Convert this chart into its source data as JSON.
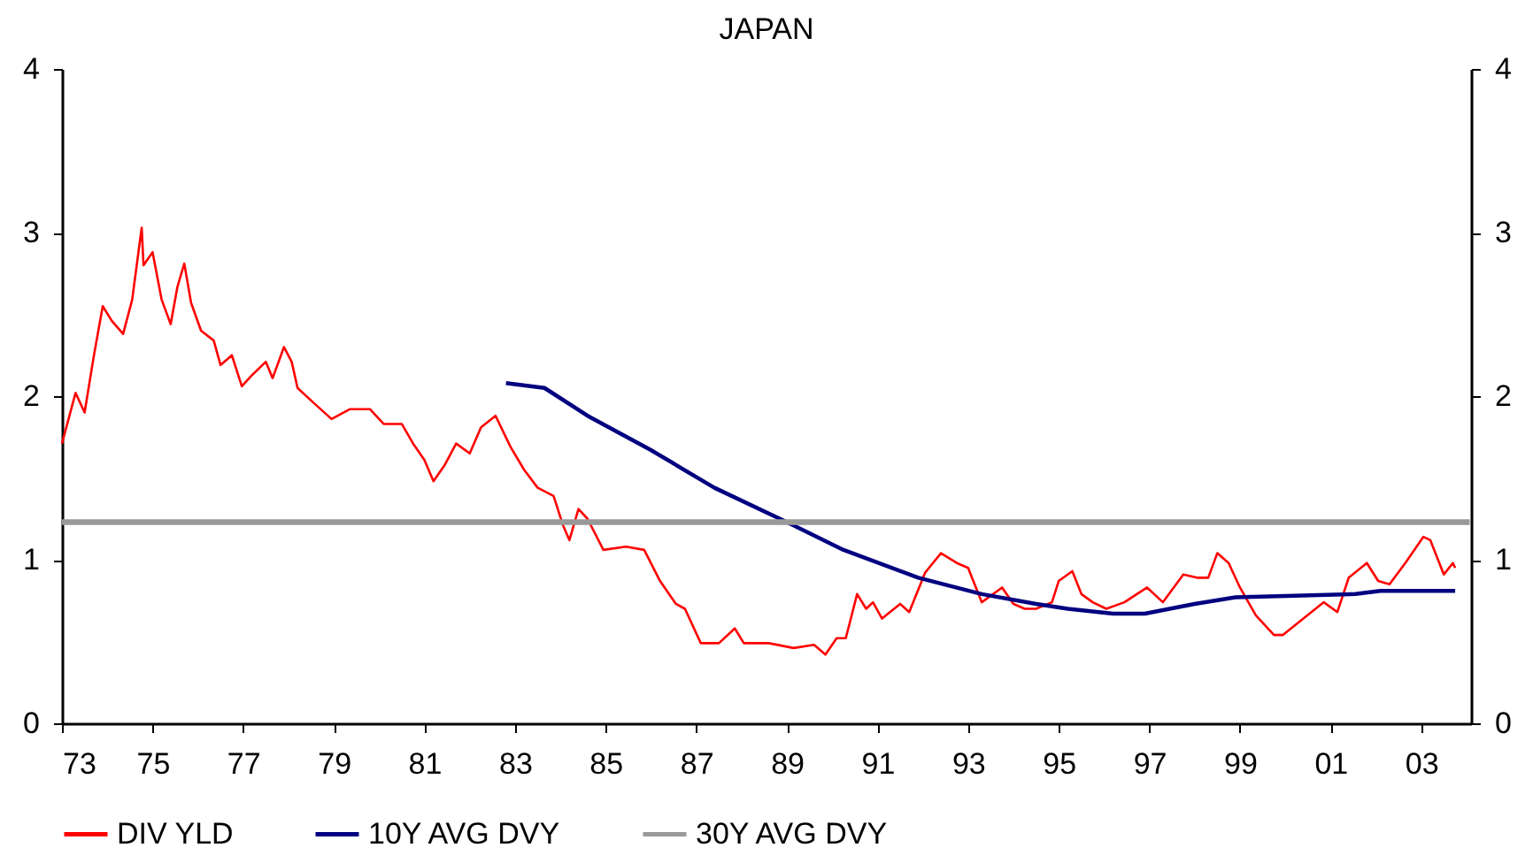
{
  "chart_data": {
    "type": "line",
    "title": "JAPAN",
    "xlim": [
      1973,
      2004.1
    ],
    "xticks": [
      {
        "value": 1973,
        "label": "73"
      },
      {
        "value": 1975,
        "label": "75"
      },
      {
        "value": 1977,
        "label": "77"
      },
      {
        "value": 1979,
        "label": "79"
      },
      {
        "value": 1981,
        "label": "81"
      },
      {
        "value": 1983,
        "label": "83"
      },
      {
        "value": 1985,
        "label": "85"
      },
      {
        "value": 1987,
        "label": "87"
      },
      {
        "value": 1989,
        "label": "89"
      },
      {
        "value": 1991,
        "label": "91"
      },
      {
        "value": 1993,
        "label": "93"
      },
      {
        "value": 1995,
        "label": "95"
      },
      {
        "value": 1997,
        "label": "97"
      },
      {
        "value": 1999,
        "label": "99"
      },
      {
        "value": 2001,
        "label": "01"
      },
      {
        "value": 2003,
        "label": "03"
      }
    ],
    "ylim": [
      0,
      4
    ],
    "yticks": [
      0,
      1,
      2,
      3,
      4
    ],
    "y2lim": [
      0,
      4
    ],
    "y2ticks": [
      0,
      1,
      2,
      3,
      4
    ],
    "grid": false,
    "legend": "bottom",
    "marker": "none",
    "line_style": "solid",
    "series": [
      {
        "name": "DIV YLD",
        "color": "#ff0000",
        "x": [
          1973.0,
          1973.3,
          1973.5,
          1973.7,
          1973.9,
          1974.1,
          1974.35,
          1974.55,
          1974.76,
          1974.8,
          1975.0,
          1975.2,
          1975.4,
          1975.55,
          1975.7,
          1975.85,
          1976.07,
          1976.35,
          1976.5,
          1976.75,
          1976.97,
          1977.2,
          1977.5,
          1977.65,
          1977.9,
          1978.07,
          1978.2,
          1978.55,
          1978.95,
          1979.35,
          1979.8,
          1980.1,
          1980.5,
          1980.75,
          1981.0,
          1981.2,
          1981.45,
          1981.7,
          1982.0,
          1982.25,
          1982.57,
          1982.9,
          1983.2,
          1983.5,
          1983.85,
          1984.06,
          1984.2,
          1984.4,
          1984.6,
          1984.95,
          1985.45,
          1985.85,
          1986.2,
          1986.55,
          1986.75,
          1987.1,
          1987.5,
          1987.85,
          1988.05,
          1988.6,
          1989.15,
          1989.6,
          1989.85,
          1990.1,
          1990.3,
          1990.55,
          1990.75,
          1990.9,
          1991.1,
          1991.5,
          1991.7,
          1992.05,
          1992.4,
          1992.75,
          1993.0,
          1993.3,
          1993.75,
          1994.0,
          1994.25,
          1994.5,
          1994.85,
          1995.0,
          1995.3,
          1995.5,
          1995.75,
          1996.05,
          1996.45,
          1996.95,
          1997.3,
          1997.75,
          1998.05,
          1998.3,
          1998.5,
          1998.75,
          1999.0,
          1999.35,
          1999.75,
          1999.95,
          2000.4,
          2000.85,
          2001.15,
          2001.4,
          2001.8,
          2002.05,
          2002.3,
          2002.65,
          2003.05,
          2003.2,
          2003.5,
          2003.7,
          2003.75
        ],
        "values": [
          1.71,
          2.02,
          1.9,
          2.24,
          2.55,
          2.46,
          2.38,
          2.59,
          3.03,
          2.8,
          2.88,
          2.59,
          2.44,
          2.67,
          2.81,
          2.57,
          2.4,
          2.34,
          2.19,
          2.25,
          2.06,
          2.13,
          2.21,
          2.11,
          2.3,
          2.21,
          2.05,
          1.96,
          1.86,
          1.92,
          1.92,
          1.83,
          1.83,
          1.71,
          1.61,
          1.48,
          1.58,
          1.71,
          1.65,
          1.81,
          1.88,
          1.69,
          1.55,
          1.44,
          1.39,
          1.21,
          1.12,
          1.31,
          1.25,
          1.06,
          1.08,
          1.06,
          0.87,
          0.73,
          0.7,
          0.49,
          0.49,
          0.58,
          0.49,
          0.49,
          0.46,
          0.48,
          0.42,
          0.52,
          0.52,
          0.79,
          0.7,
          0.74,
          0.64,
          0.73,
          0.68,
          0.92,
          1.04,
          0.98,
          0.95,
          0.74,
          0.83,
          0.73,
          0.7,
          0.7,
          0.74,
          0.87,
          0.93,
          0.79,
          0.74,
          0.7,
          0.74,
          0.83,
          0.74,
          0.91,
          0.89,
          0.89,
          1.04,
          0.98,
          0.83,
          0.66,
          0.54,
          0.54,
          0.64,
          0.74,
          0.68,
          0.89,
          0.98,
          0.87,
          0.85,
          0.98,
          1.14,
          1.12,
          0.91,
          0.98,
          0.95
        ]
      },
      {
        "name": "10Y AVG DVY",
        "color": "#000080",
        "x": [
          1982.8,
          1983.65,
          1984.6,
          1986.0,
          1987.4,
          1989.0,
          1990.25,
          1991.9,
          1993.3,
          1994.5,
          1995.2,
          1996.2,
          1996.9,
          1998.0,
          1998.9,
          2000.2,
          2001.55,
          2002.1,
          2003.75
        ],
        "values": [
          2.08,
          2.05,
          1.88,
          1.67,
          1.44,
          1.23,
          1.06,
          0.89,
          0.79,
          0.73,
          0.7,
          0.67,
          0.67,
          0.73,
          0.77,
          0.78,
          0.79,
          0.81,
          0.81
        ]
      },
      {
        "name": "30Y AVG DVY",
        "color": "#999999",
        "x": [
          1973.0,
          2004.07
        ],
        "values": [
          1.23,
          1.23
        ]
      }
    ]
  }
}
